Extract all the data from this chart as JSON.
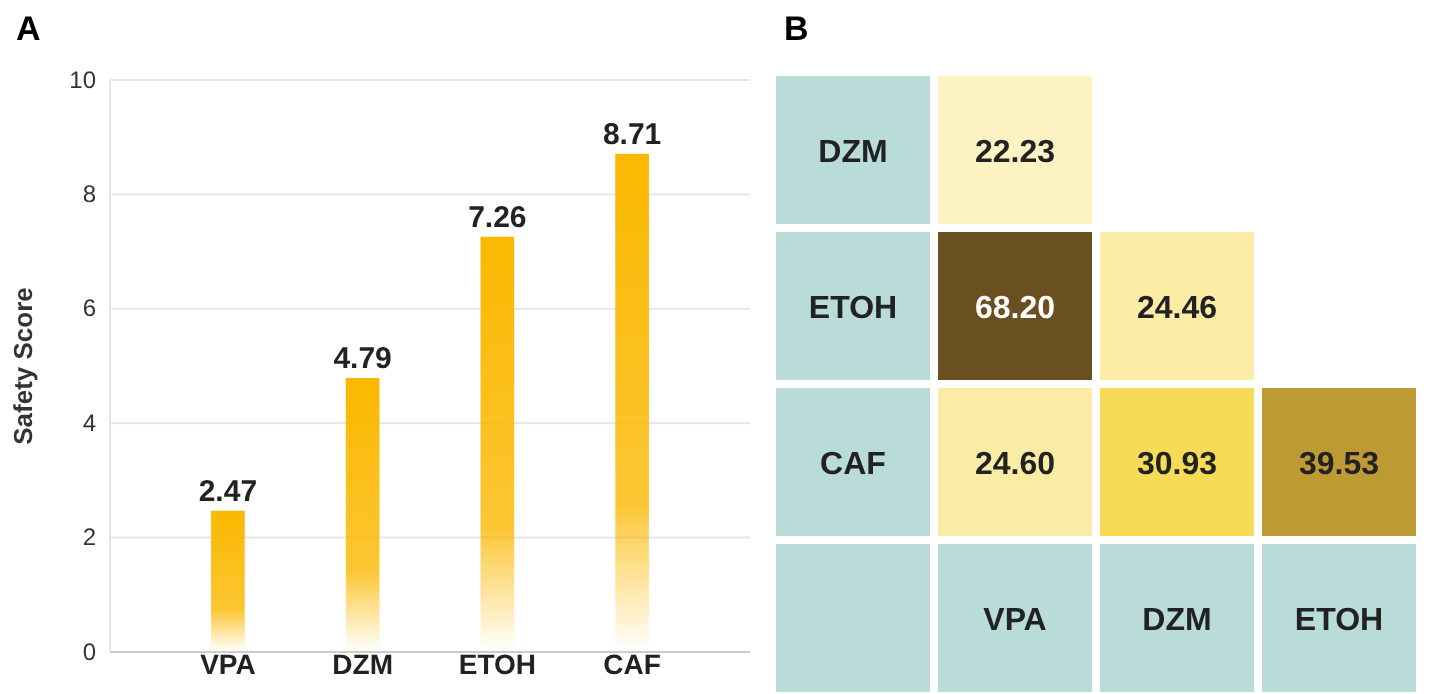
{
  "chart_data": [
    {
      "type": "bar",
      "title": "A",
      "ylabel": "Safety Score",
      "categories": [
        "VPA",
        "DZM",
        "ETOH",
        "CAF"
      ],
      "values": [
        2.47,
        4.79,
        7.26,
        8.71
      ],
      "color": "#fbb800",
      "ylim": [
        0,
        10
      ],
      "yticks": [
        0,
        2,
        4,
        6,
        8,
        10
      ],
      "grid": "y",
      "data_labels": true
    },
    {
      "type": "heatmap",
      "title": "B",
      "categories": [
        "VPA",
        "DZM",
        "ETOH"
      ],
      "y_categories": [
        "DZM",
        "ETOH",
        "CAF"
      ],
      "cells": [
        [
          22.23,
          null,
          null
        ],
        [
          68.2,
          24.46,
          null
        ],
        [
          24.6,
          30.93,
          39.53
        ]
      ],
      "cell_labels": [
        [
          "22.23",
          null,
          null
        ],
        [
          "68.20",
          "24.46",
          null
        ],
        [
          "24.60",
          "30.93",
          "39.53"
        ]
      ]
    }
  ]
}
